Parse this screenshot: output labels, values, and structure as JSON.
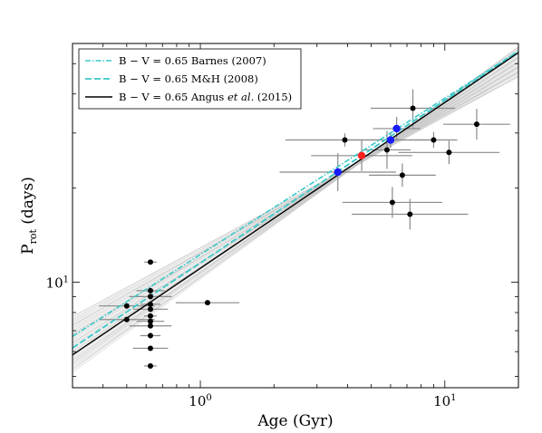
{
  "chart_data": {
    "type": "scatter",
    "xlabel": "Age (Gyr)",
    "ylabel_main": "P",
    "ylabel_sub": "rot",
    "ylabel_rest": " (days)",
    "xscale": "log",
    "yscale": "log",
    "xlim": [
      0.3,
      20
    ],
    "ylim": [
      4.6,
      58
    ],
    "xticks": [
      {
        "value": 1,
        "base": "10",
        "exp": "0"
      },
      {
        "value": 10,
        "base": "10",
        "exp": "1"
      }
    ],
    "yticks": [
      {
        "value": 10,
        "base": "10",
        "exp": "1"
      }
    ],
    "grid": false,
    "legend_position": "top-left",
    "legend": [
      {
        "label": "B − V = 0.65 Barnes (2007)",
        "style": "dashdot",
        "color": "#3cc8c8"
      },
      {
        "label": "B − V = 0.65 M&H (2008)",
        "style": "dashed",
        "color": "#3cc8c8"
      },
      {
        "label_pre": "B − V = 0.65 Angus ",
        "label_em": "et al.",
        "label_post": " (2015)",
        "style": "solid",
        "color": "#000000"
      }
    ],
    "lines": [
      {
        "name": "barnes",
        "a": 26.0,
        "b": 0.5
      },
      {
        "name": "mh",
        "a": 25.2,
        "b": 0.52
      },
      {
        "name": "angus",
        "a": 24.6,
        "b": 0.53
      }
    ],
    "sample_lines": {
      "a": [
        24.0,
        24.5
      ],
      "b": [
        0.42,
        0.57
      ],
      "count": 45,
      "color": "#c8c8c8"
    },
    "points_black": [
      {
        "x": 0.625,
        "y": 11.6
      },
      {
        "x": 0.625,
        "y": 9.4
      },
      {
        "x": 0.625,
        "y": 9.0
      },
      {
        "x": 0.625,
        "y": 8.5
      },
      {
        "x": 0.625,
        "y": 8.2
      },
      {
        "x": 0.625,
        "y": 7.8
      },
      {
        "x": 0.625,
        "y": 7.5
      },
      {
        "x": 0.625,
        "y": 7.25
      },
      {
        "x": 0.625,
        "y": 6.75
      },
      {
        "x": 0.625,
        "y": 6.15
      },
      {
        "x": 0.625,
        "y": 5.4
      },
      {
        "x": 0.5,
        "y": 8.4
      },
      {
        "x": 0.5,
        "y": 7.6
      },
      {
        "x": 1.07,
        "y": 8.6
      },
      {
        "x": 3.9,
        "y": 28.5
      },
      {
        "x": 5.8,
        "y": 26.5
      },
      {
        "x": 6.1,
        "y": 18.0
      },
      {
        "x": 6.7,
        "y": 22.0
      },
      {
        "x": 7.2,
        "y": 16.5
      },
      {
        "x": 7.4,
        "y": 36.0
      },
      {
        "x": 9.0,
        "y": 28.5
      },
      {
        "x": 10.4,
        "y": 26.0
      },
      {
        "x": 13.5,
        "y": 32.0
      }
    ],
    "points_blue": [
      {
        "x": 3.65,
        "y": 22.5
      },
      {
        "x": 6.0,
        "y": 28.5
      },
      {
        "x": 6.35,
        "y": 31.0
      }
    ],
    "points_red": [
      {
        "x": 4.57,
        "y": 25.4
      }
    ],
    "colors": {
      "black": "#000000",
      "blue": "#1a1aff",
      "red": "#ff2020",
      "errorbar": "#8a8a8a",
      "cyan": "#3cc8c8"
    }
  }
}
